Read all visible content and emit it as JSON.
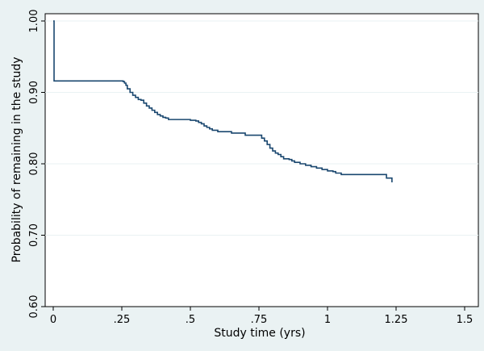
{
  "chart_data": {
    "type": "line",
    "subtype": "step (Kaplan-Meier survival curve)",
    "title": "",
    "xlabel": "Study time (yrs)",
    "ylabel": "Probability of remaining in the study",
    "xlim": [
      0,
      1.5
    ],
    "ylim": [
      0.6,
      1.0
    ],
    "x_ticks": [
      {
        "value": 0,
        "label": "0"
      },
      {
        "value": 0.25,
        "label": ".25"
      },
      {
        "value": 0.5,
        "label": ".5"
      },
      {
        "value": 0.75,
        "label": ".75"
      },
      {
        "value": 1,
        "label": "1"
      },
      {
        "value": 1.25,
        "label": "1.25"
      },
      {
        "value": 1.5,
        "label": "1.5"
      }
    ],
    "y_ticks": [
      {
        "value": 0.6,
        "label": "0.60"
      },
      {
        "value": 0.7,
        "label": "0.70"
      },
      {
        "value": 0.8,
        "label": "0.80"
      },
      {
        "value": 0.9,
        "label": "0.90"
      },
      {
        "value": 1.0,
        "label": "1.00"
      }
    ],
    "grid": "horizontal",
    "series": [
      {
        "color": "#1a476f",
        "points": [
          [
            0.0,
            1.0
          ],
          [
            0.003,
            0.916
          ],
          [
            0.245,
            0.916
          ],
          [
            0.255,
            0.915
          ],
          [
            0.26,
            0.913
          ],
          [
            0.265,
            0.91
          ],
          [
            0.27,
            0.905
          ],
          [
            0.28,
            0.9
          ],
          [
            0.29,
            0.896
          ],
          [
            0.3,
            0.893
          ],
          [
            0.31,
            0.89
          ],
          [
            0.32,
            0.889
          ],
          [
            0.33,
            0.885
          ],
          [
            0.34,
            0.881
          ],
          [
            0.35,
            0.878
          ],
          [
            0.36,
            0.875
          ],
          [
            0.37,
            0.872
          ],
          [
            0.38,
            0.869
          ],
          [
            0.39,
            0.867
          ],
          [
            0.4,
            0.865
          ],
          [
            0.41,
            0.864
          ],
          [
            0.42,
            0.862
          ],
          [
            0.47,
            0.862
          ],
          [
            0.5,
            0.861
          ],
          [
            0.52,
            0.86
          ],
          [
            0.53,
            0.858
          ],
          [
            0.54,
            0.856
          ],
          [
            0.55,
            0.853
          ],
          [
            0.56,
            0.851
          ],
          [
            0.57,
            0.849
          ],
          [
            0.58,
            0.847
          ],
          [
            0.6,
            0.845
          ],
          [
            0.65,
            0.843
          ],
          [
            0.7,
            0.84
          ],
          [
            0.755,
            0.84
          ],
          [
            0.76,
            0.836
          ],
          [
            0.77,
            0.832
          ],
          [
            0.78,
            0.827
          ],
          [
            0.79,
            0.822
          ],
          [
            0.8,
            0.818
          ],
          [
            0.81,
            0.815
          ],
          [
            0.82,
            0.813
          ],
          [
            0.83,
            0.81
          ],
          [
            0.84,
            0.807
          ],
          [
            0.86,
            0.806
          ],
          [
            0.87,
            0.804
          ],
          [
            0.88,
            0.802
          ],
          [
            0.9,
            0.8
          ],
          [
            0.92,
            0.798
          ],
          [
            0.94,
            0.796
          ],
          [
            0.96,
            0.794
          ],
          [
            0.98,
            0.792
          ],
          [
            1.0,
            0.79
          ],
          [
            1.02,
            0.789
          ],
          [
            1.03,
            0.787
          ],
          [
            1.05,
            0.785
          ],
          [
            1.215,
            0.785
          ],
          [
            1.215,
            0.78
          ],
          [
            1.235,
            0.78
          ],
          [
            1.235,
            0.774
          ]
        ]
      }
    ]
  }
}
